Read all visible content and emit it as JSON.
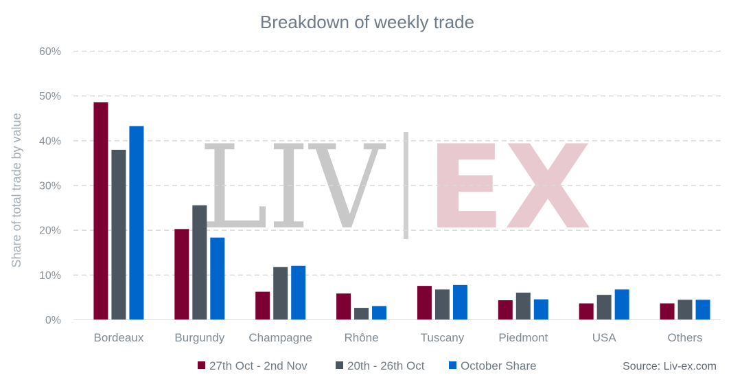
{
  "watermark": {
    "left": "LIV",
    "right": "EX"
  },
  "source": "Source: Liv-ex.com",
  "chart_data": {
    "type": "bar",
    "title": "Breakdown of weekly trade",
    "ylabel": "Share of total trade by value",
    "xlabel": "",
    "ylim": [
      0,
      60
    ],
    "yticks": [
      "0%",
      "10%",
      "20%",
      "30%",
      "40%",
      "50%",
      "60%"
    ],
    "grid": true,
    "legend_position": "bottom",
    "categories": [
      "Bordeaux",
      "Burgundy",
      "Champagne",
      "Rhône",
      "Tuscany",
      "Piedmont",
      "USA",
      "Others"
    ],
    "series": [
      {
        "name": "27th Oct - 2nd Nov",
        "color": "#7d0033",
        "values": [
          48.5,
          20.2,
          6.2,
          5.8,
          7.5,
          4.3,
          3.6,
          3.6
        ]
      },
      {
        "name": "20th - 26th Oct",
        "color": "#4b5660",
        "values": [
          37.9,
          25.5,
          11.7,
          2.6,
          6.7,
          6.0,
          5.5,
          4.4
        ]
      },
      {
        "name": "October Share",
        "color": "#0066cc",
        "values": [
          43.2,
          18.3,
          12.0,
          3.0,
          7.7,
          4.5,
          6.7,
          4.4
        ]
      }
    ]
  }
}
